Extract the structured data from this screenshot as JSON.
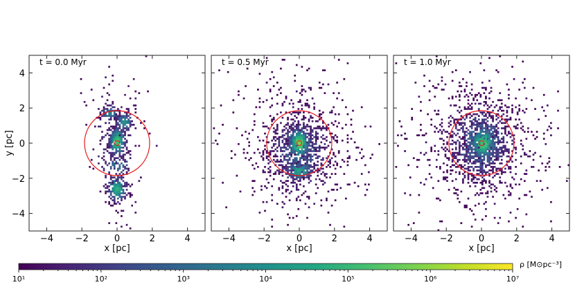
{
  "chart_data": {
    "type": "heatmap",
    "shared": {
      "xlabel": "x [pc]",
      "ylabel": "y [pc]",
      "xlim": [
        -5,
        5
      ],
      "ylim": [
        -5,
        5
      ],
      "xticks": [
        -4,
        -2,
        0,
        2,
        4
      ],
      "yticks": [
        -4,
        -2,
        0,
        2,
        4
      ],
      "circle_radius_pc": 1.85,
      "circle_color": "#e8191b",
      "colormap": "viridis"
    },
    "panels": [
      {
        "annotation": "t = 0.0 Myr",
        "circle_center": [
          0.0,
          0.0
        ],
        "clumps": [
          {
            "x": 0.0,
            "y": 0.1,
            "sx": 0.25,
            "sy": 0.45,
            "peak_log": 5.3,
            "n": 260
          },
          {
            "x": 0.4,
            "y": 1.2,
            "sx": 0.25,
            "sy": 0.3,
            "peak_log": 3.9,
            "n": 110
          },
          {
            "x": 0.0,
            "y": -2.6,
            "sx": 0.3,
            "sy": 0.4,
            "peak_log": 4.7,
            "n": 170
          },
          {
            "x": -0.4,
            "y": 1.7,
            "sx": 0.3,
            "sy": 0.25,
            "peak_log": 3.4,
            "n": 70
          },
          {
            "x": 0.0,
            "y": -1.3,
            "sx": 0.5,
            "sy": 0.35,
            "peak_log": 3.1,
            "n": 70
          },
          {
            "x": 0.0,
            "y": 0.0,
            "sx": 0.9,
            "sy": 2.6,
            "peak_log": 1.8,
            "n": 160
          }
        ]
      },
      {
        "annotation": "t = 0.5 Myr",
        "circle_center": [
          0.0,
          0.0
        ],
        "clumps": [
          {
            "x": 0.0,
            "y": 0.0,
            "sx": 0.35,
            "sy": 0.5,
            "peak_log": 5.6,
            "n": 320
          },
          {
            "x": 0.0,
            "y": -1.6,
            "sx": 0.45,
            "sy": 0.3,
            "peak_log": 4.4,
            "n": 170
          },
          {
            "x": 0.0,
            "y": -0.5,
            "sx": 1.0,
            "sy": 1.2,
            "peak_log": 2.8,
            "n": 520
          },
          {
            "x": 0.0,
            "y": 0.0,
            "sx": 2.0,
            "sy": 2.2,
            "peak_log": 1.3,
            "n": 480
          }
        ]
      },
      {
        "annotation": "t = 1.0 Myr",
        "circle_center": [
          0.0,
          0.0
        ],
        "clumps": [
          {
            "x": 0.1,
            "y": 0.0,
            "sx": 0.45,
            "sy": 0.55,
            "peak_log": 5.2,
            "n": 380
          },
          {
            "x": 0.0,
            "y": 0.0,
            "sx": 1.0,
            "sy": 1.2,
            "peak_log": 3.0,
            "n": 620
          },
          {
            "x": 0.0,
            "y": 0.0,
            "sx": 2.0,
            "sy": 2.2,
            "peak_log": 1.4,
            "n": 700
          }
        ]
      }
    ],
    "colorbar": {
      "label": "ρ [M⊙pc⁻³]",
      "range_log": [
        1,
        7
      ],
      "tick_labels": [
        "10¹",
        "10²",
        "10³",
        "10⁴",
        "10⁵",
        "10⁶",
        "10⁷"
      ]
    }
  }
}
